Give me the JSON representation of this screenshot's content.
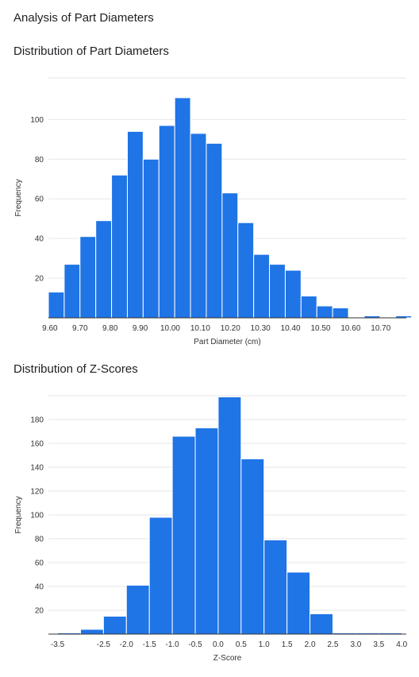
{
  "page": {
    "title": "Analysis of Part Diameters"
  },
  "colors": {
    "bar": "#1f74e6",
    "bar_edge": "#ffffff",
    "grid": "#e6e6e6",
    "baseline": "#333333"
  },
  "chart_data": [
    {
      "type": "bar",
      "title": "Distribution of Part Diameters",
      "xlabel": "Part Diameter (cm)",
      "ylabel": "Frequency",
      "xlim": [
        9.595,
        10.785
      ],
      "ylim": [
        0,
        121
      ],
      "yticks": [
        20,
        40,
        60,
        80,
        100
      ],
      "xticks": [
        "9.60",
        "9.70",
        "9.80",
        "9.90",
        "10.00",
        "10.10",
        "10.20",
        "10.30",
        "10.40",
        "10.50",
        "10.60",
        "10.70"
      ],
      "bin_width": 0.0525,
      "bin_starts": [
        9.595,
        9.6475,
        9.7,
        9.7525,
        9.805,
        9.8575,
        9.91,
        9.9625,
        10.015,
        10.0675,
        10.12,
        10.1725,
        10.225,
        10.2775,
        10.33,
        10.3825,
        10.435,
        10.4875,
        10.54,
        10.5925,
        10.645,
        10.6975,
        10.75
      ],
      "values": [
        13,
        27,
        41,
        49,
        72,
        94,
        80,
        97,
        111,
        93,
        88,
        63,
        48,
        32,
        27,
        24,
        11,
        6,
        5,
        0,
        1,
        0,
        1
      ],
      "grid": true,
      "legend": "none"
    },
    {
      "type": "bar",
      "title": "Distribution of Z-Scores",
      "xlabel": "Z-Score",
      "ylabel": "Frequency",
      "xlim": [
        -3.7,
        4.1
      ],
      "ylim": [
        0,
        200
      ],
      "yticks": [
        20,
        40,
        60,
        80,
        100,
        120,
        140,
        160,
        180
      ],
      "xticks": [
        "-3.5",
        "-2.5",
        "-2.0",
        "-1.5",
        "-1.0",
        "-0.5",
        "0.0",
        "0.5",
        "1.0",
        "1.5",
        "2.0",
        "2.5",
        "3.0",
        "3.5",
        "4.0"
      ],
      "bin_width": 0.5,
      "bin_starts": [
        -3.5,
        -3.0,
        -2.5,
        -2.0,
        -1.5,
        -1.0,
        -0.5,
        0.0,
        0.5,
        1.0,
        1.5,
        2.0,
        2.5,
        3.0,
        3.5
      ],
      "values": [
        1,
        4,
        15,
        41,
        98,
        166,
        173,
        199,
        147,
        79,
        52,
        17,
        1,
        1,
        1
      ],
      "grid": true,
      "legend": "none"
    }
  ]
}
